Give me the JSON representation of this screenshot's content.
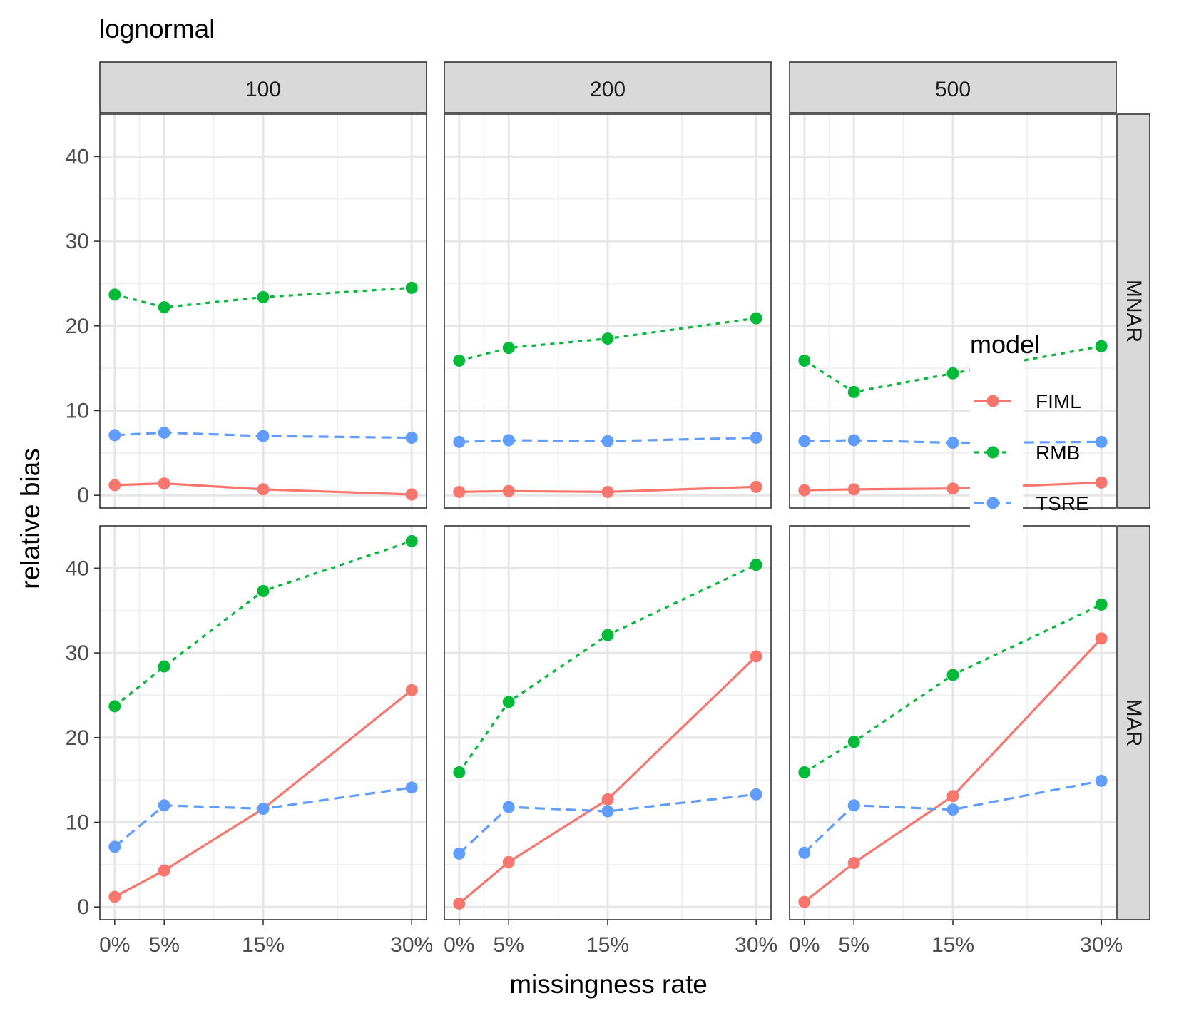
{
  "chart_data": {
    "type": "line",
    "title": "lognormal",
    "xlabel": "missingness rate",
    "ylabel": "relative bias",
    "x": [
      0,
      5,
      15,
      30
    ],
    "x_tick_labels": [
      "0%",
      "5%",
      "15%",
      "30%"
    ],
    "y_ticks": [
      0,
      10,
      20,
      30,
      40
    ],
    "ylim": [
      -1.5,
      45
    ],
    "xlim": [
      -1.5,
      31.5
    ],
    "grid": true,
    "columns": [
      "100",
      "200",
      "500"
    ],
    "rows": [
      "MNAR",
      "MAR"
    ],
    "legend": {
      "title": "model",
      "position": "right",
      "entries": [
        "FIML",
        "RMB",
        "TSRE"
      ]
    },
    "series_styles": {
      "FIML": {
        "color": "#F8766D",
        "dash": "solid"
      },
      "RMB": {
        "color": "#00BA38",
        "dash": "dotted"
      },
      "TSRE": {
        "color": "#619CFF",
        "dash": "dashed"
      }
    },
    "panels": [
      {
        "row": "MNAR",
        "col": "100",
        "series": [
          {
            "name": "FIML",
            "values": [
              1.2,
              1.4,
              0.7,
              0.1
            ]
          },
          {
            "name": "RMB",
            "values": [
              23.7,
              22.2,
              23.4,
              24.5
            ]
          },
          {
            "name": "TSRE",
            "values": [
              7.1,
              7.4,
              7.0,
              6.8
            ]
          }
        ]
      },
      {
        "row": "MNAR",
        "col": "200",
        "series": [
          {
            "name": "FIML",
            "values": [
              0.4,
              0.5,
              0.4,
              1.0
            ]
          },
          {
            "name": "RMB",
            "values": [
              15.9,
              17.4,
              18.5,
              20.9
            ]
          },
          {
            "name": "TSRE",
            "values": [
              6.3,
              6.5,
              6.4,
              6.8
            ]
          }
        ]
      },
      {
        "row": "MNAR",
        "col": "500",
        "series": [
          {
            "name": "FIML",
            "values": [
              0.6,
              0.7,
              0.8,
              1.5
            ]
          },
          {
            "name": "RMB",
            "values": [
              15.9,
              12.2,
              14.4,
              17.6
            ]
          },
          {
            "name": "TSRE",
            "values": [
              6.4,
              6.5,
              6.2,
              6.3
            ]
          }
        ]
      },
      {
        "row": "MAR",
        "col": "100",
        "series": [
          {
            "name": "FIML",
            "values": [
              1.2,
              4.3,
              11.6,
              25.6
            ]
          },
          {
            "name": "RMB",
            "values": [
              23.7,
              28.4,
              37.3,
              43.2
            ]
          },
          {
            "name": "TSRE",
            "values": [
              7.1,
              12.0,
              11.6,
              14.1
            ]
          }
        ]
      },
      {
        "row": "MAR",
        "col": "200",
        "series": [
          {
            "name": "FIML",
            "values": [
              0.4,
              5.3,
              12.7,
              29.6
            ]
          },
          {
            "name": "RMB",
            "values": [
              15.9,
              24.2,
              32.1,
              40.4
            ]
          },
          {
            "name": "TSRE",
            "values": [
              6.3,
              11.8,
              11.3,
              13.3
            ]
          }
        ]
      },
      {
        "row": "MAR",
        "col": "500",
        "series": [
          {
            "name": "FIML",
            "values": [
              0.6,
              5.2,
              13.1,
              31.7
            ]
          },
          {
            "name": "RMB",
            "values": [
              15.9,
              19.5,
              27.4,
              35.7
            ]
          },
          {
            "name": "TSRE",
            "values": [
              6.4,
              12.0,
              11.5,
              14.9
            ]
          }
        ]
      }
    ]
  }
}
